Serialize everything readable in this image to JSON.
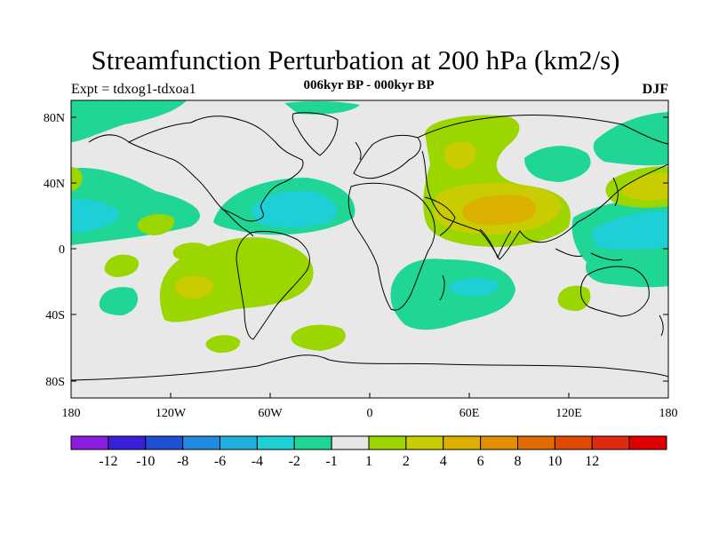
{
  "title": "Streamfunction Perturbation at 200 hPa (km2/s)",
  "subtitle": "006kyr BP - 000kyr BP",
  "left_label": "Expt = tdxog1-tdxoa1",
  "right_label": "DJF",
  "map": {
    "lat_ticks": [
      "80N",
      "40N",
      "0",
      "40S",
      "80S"
    ],
    "lon_ticks": [
      "180",
      "120W",
      "60W",
      "0",
      "60E",
      "120E",
      "180"
    ],
    "background_color": "#e8e8e8"
  },
  "colorbar": {
    "colors": [
      "#8a1de0",
      "#3a1fd9",
      "#1f4fd6",
      "#1f8ae0",
      "#1fb0e0",
      "#1fcfd6",
      "#1fd694",
      "#e6e6e6",
      "#9bd600",
      "#c8cc00",
      "#dcb000",
      "#e09000",
      "#e06a00",
      "#e04a00",
      "#e02a10",
      "#e00000"
    ],
    "labels": [
      "-12",
      "-10",
      "-8",
      "-6",
      "-4",
      "-2",
      "-1",
      "1",
      "2",
      "4",
      "6",
      "8",
      "10",
      "12"
    ]
  },
  "colors": {
    "neg_1_2": "#1fd694",
    "neg_2_4": "#1fcfd6",
    "pos_1_2": "#9bd600",
    "pos_2_4": "#c8cc00",
    "pos_4_6": "#dcb000"
  }
}
